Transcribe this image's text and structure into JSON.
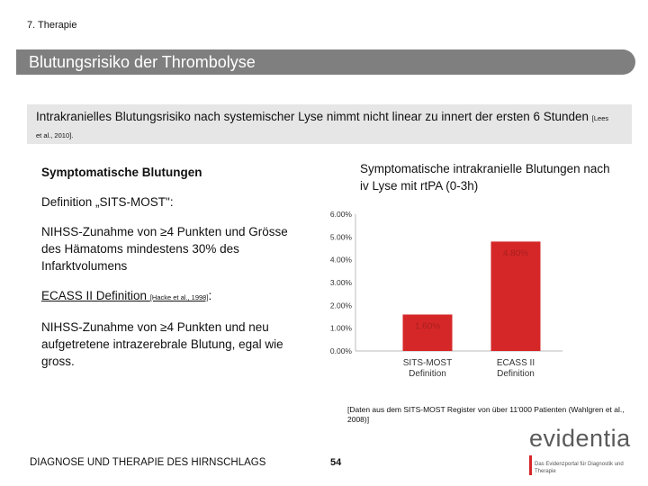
{
  "section": "7. Therapie",
  "title": "Blutungsrisiko der Thrombolyse",
  "intro": {
    "text": "Intrakranielles Blutungsrisiko nach systemischer Lyse nimmt nicht linear zu innert der ersten  6 Stunden ",
    "ref": "[Lees et al., 2010]."
  },
  "left": {
    "heading": "Symptomatische Blutungen",
    "def1_title": "Definition „SITS-MOST\":",
    "def1_text": "NIHSS-Zunahme von ≥4 Punkten und Grösse des Hämatoms mindestens 30% des Infarktvolumens",
    "def2_title": "ECASS II Definition ",
    "def2_ref": "[Hacke et al., 1998]",
    "def2_colon": ":",
    "def2_text": "NIHSS-Zunahme von ≥4 Punkten und neu aufgetretene intrazerebrale Blutung, egal wie gross."
  },
  "chart_heading": "Symptomatische intrakranielle Blutungen nach iv Lyse mit rtPA (0-3h)",
  "chart_data": {
    "type": "bar",
    "categories": [
      "SITS-MOST Definition",
      "ECASS II Definition"
    ],
    "category_lines": [
      [
        "SITS-MOST",
        "Definition"
      ],
      [
        "ECASS II",
        "Definition"
      ]
    ],
    "values": [
      1.6,
      4.8
    ],
    "data_labels": [
      "1.60%",
      "4.80%"
    ],
    "y_ticks": [
      0,
      1,
      2,
      3,
      4,
      5,
      6
    ],
    "y_tick_labels": [
      "0.00%",
      "1.00%",
      "2.00%",
      "3.00%",
      "4.00%",
      "5.00%",
      "6.00%"
    ],
    "ylim": [
      0,
      6
    ],
    "title": "",
    "xlabel": "",
    "ylabel": "",
    "bar_color": "#d62728",
    "label_color": "#a81f1f",
    "grid": false
  },
  "source_note": "[Daten aus dem SITS-MOST Register von über 11'000 Patienten (Wahlgren et al., 2008)]",
  "footer": "DIAGNOSE UND THERAPIE DES HIRNSCHLAGS",
  "page_number": "54",
  "logo": {
    "word": "evidentia",
    "tagline": "Das Evidenzportal für Diagnostik und Therapie"
  }
}
